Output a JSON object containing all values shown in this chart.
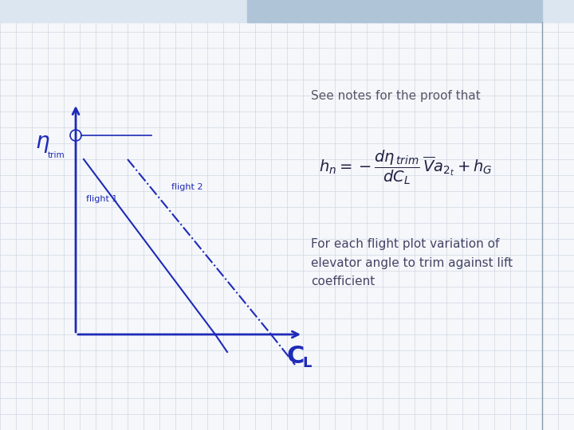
{
  "bg_color": "#f5f7fa",
  "grid_color": "#d0d8e4",
  "blue": "#1e2ab8",
  "text_dark": "#4a4a6a",
  "text_blue": "#1e2ab8",
  "title_text": "See notes for the proof that",
  "body_text": "For each flight plot variation of\nelevator angle to trim against lift\ncoefficient",
  "flight1_label": "flight 1",
  "flight2_label": "flight 2",
  "header_left_color": "#e8eef5",
  "header_right_color": "#c5d3e0",
  "right_line_color": "#9aaabb",
  "font_size_title": 11,
  "font_size_body": 11,
  "font_size_label": 8
}
